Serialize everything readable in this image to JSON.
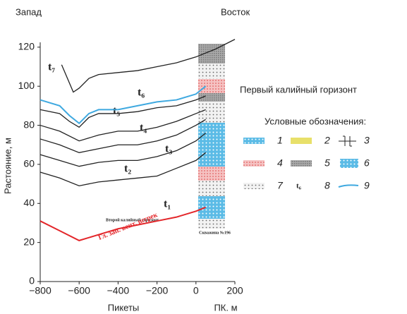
{
  "chart_data": {
    "type": "line",
    "west": "Запад",
    "east": "Восток",
    "y_label": "Растояние, м",
    "x_label": "Пикеты",
    "x_unit_label": "ПК. м",
    "horizon_label": "Первый калийный горизонт",
    "annotations": [
      "Второй калийный горизонт",
      "Скважина №196",
      "Гл. зап. вент. штрек"
    ],
    "layer_labels": [
      "t₇",
      "t₆",
      "t₅",
      "t₄",
      "t₃",
      "t₂",
      "t₁"
    ],
    "xlim": [
      -800,
      200
    ],
    "ylim": [
      0,
      125
    ],
    "xticks": [
      {
        "value": -800,
        "label": "−800"
      },
      {
        "value": -600,
        "label": "−600"
      },
      {
        "value": -400,
        "label": "−400"
      },
      {
        "value": -200,
        "label": "−200"
      },
      0,
      200
    ],
    "yticks": [
      0,
      20,
      40,
      60,
      80,
      100,
      120
    ],
    "grid": false,
    "series": [
      {
        "color": "#222222",
        "x": [
          -690,
          -630,
          -600,
          -550,
          -500,
          -400,
          -300,
          -200,
          -100,
          0,
          50,
          100,
          200
        ],
        "values": [
          111,
          97,
          99,
          104,
          106,
          107,
          108,
          110,
          112,
          115,
          117,
          119,
          124
        ]
      },
      {
        "color": "#3fa9e0",
        "x": [
          -800,
          -700,
          -650,
          -600,
          -550,
          -500,
          -400,
          -300,
          -200,
          -100,
          0,
          50
        ],
        "values": [
          93,
          90,
          85,
          81,
          86,
          88,
          88,
          90,
          92,
          93,
          96,
          100
        ]
      },
      {
        "color": "#222222",
        "x": [
          -800,
          -700,
          -650,
          -600,
          -550,
          -500,
          -400,
          -300,
          -200,
          -100,
          0,
          50
        ],
        "values": [
          88,
          86,
          82,
          79,
          84,
          86,
          86,
          87,
          89,
          90,
          93,
          95
        ]
      },
      {
        "color": "#222222",
        "x": [
          -800,
          -700,
          -600,
          -500,
          -400,
          -300,
          -200,
          -100,
          0,
          50
        ],
        "values": [
          80,
          77,
          72,
          75,
          77,
          77,
          79,
          82,
          86,
          88
        ]
      },
      {
        "color": "#222222",
        "x": [
          -800,
          -700,
          -600,
          -500,
          -400,
          -300,
          -200,
          -100,
          0,
          50
        ],
        "values": [
          73,
          70,
          66,
          68,
          70,
          70,
          72,
          75,
          80,
          83
        ]
      },
      {
        "color": "#222222",
        "x": [
          -800,
          -700,
          -600,
          -500,
          -400,
          -300,
          -200,
          -100,
          0,
          50
        ],
        "values": [
          65,
          62,
          59,
          61,
          62,
          62,
          64,
          67,
          72,
          76
        ]
      },
      {
        "color": "#222222",
        "x": [
          -800,
          -700,
          -600,
          -500,
          -400,
          -300,
          -200,
          -100,
          0,
          50
        ],
        "values": [
          56,
          53,
          49,
          51,
          52,
          53,
          54,
          58,
          62,
          66
        ]
      },
      {
        "color": "#e3262a",
        "x": [
          -800,
          -700,
          -600,
          -500,
          -400,
          -300,
          -200,
          -100,
          0,
          50
        ],
        "values": [
          31,
          26,
          21,
          24,
          27,
          29,
          31,
          33,
          36,
          38
        ]
      }
    ],
    "legend": {
      "title": "Условные обозначения:",
      "items": [
        "1",
        "2",
        "3",
        "4",
        "5",
        "6",
        "7",
        "8",
        "9"
      ],
      "symbol_6": "t₆"
    }
  }
}
